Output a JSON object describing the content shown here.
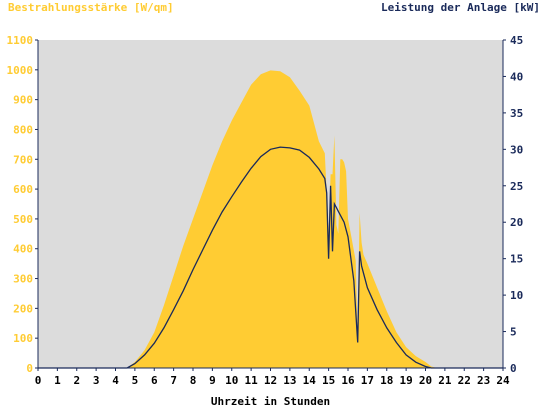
{
  "chart_data": {
    "type": "area",
    "title_left": "Bestrahlungsstärke [W/qm]",
    "title_right": "Leistung der Anlage [kW]",
    "xlabel": "Uhrzeit in Stunden",
    "x_ticks": [
      "0",
      "1",
      "2",
      "3",
      "4",
      "5",
      "6",
      "7",
      "8",
      "9",
      "10",
      "11",
      "12",
      "13",
      "14",
      "15",
      "16",
      "17",
      "18",
      "19",
      "20",
      "21",
      "22",
      "23",
      "24"
    ],
    "y_left_ticks": [
      "0",
      "100",
      "200",
      "300",
      "400",
      "500",
      "600",
      "700",
      "800",
      "900",
      "1000",
      "1100"
    ],
    "y_right_ticks": [
      "0",
      "5",
      "10",
      "15",
      "20",
      "25",
      "30",
      "35",
      "40",
      "45"
    ],
    "xlim": [
      0,
      24
    ],
    "ylim_left": [
      0,
      1100
    ],
    "ylim_right": [
      0,
      45
    ],
    "grid": false,
    "colors": {
      "background": "#dcdcdc",
      "irradiance_fill": "#ffcc33",
      "power_line": "#1a2a5a",
      "left_axis_text": "#ffcc33",
      "right_axis_text": "#1a2a5a",
      "axis_line": "#1a2a5a",
      "x_text": "#000000"
    },
    "series": [
      {
        "axis": "left",
        "style": "area",
        "x": [
          0,
          4.6,
          5.0,
          5.5,
          6.0,
          6.5,
          7.0,
          7.5,
          8.0,
          8.5,
          9.0,
          9.5,
          10.0,
          10.5,
          11.0,
          11.5,
          12.0,
          12.5,
          13.0,
          13.5,
          14.0,
          14.5,
          14.8,
          15.0,
          15.1,
          15.2,
          15.3,
          15.4,
          15.5,
          15.6,
          15.7,
          15.8,
          15.9,
          16.0,
          16.2,
          16.4,
          16.5,
          16.6,
          16.7,
          16.8,
          17.0,
          17.5,
          18.0,
          18.5,
          19.0,
          19.5,
          20.0,
          20.3,
          20.6,
          24
        ],
        "y": [
          0,
          0,
          20,
          60,
          120,
          210,
          310,
          410,
          500,
          590,
          680,
          760,
          830,
          890,
          950,
          985,
          998,
          995,
          975,
          930,
          880,
          760,
          720,
          450,
          650,
          650,
          780,
          480,
          450,
          700,
          700,
          690,
          660,
          500,
          430,
          360,
          100,
          520,
          420,
          380,
          350,
          270,
          190,
          120,
          70,
          40,
          20,
          5,
          0,
          0
        ]
      },
      {
        "axis": "right",
        "style": "line",
        "x": [
          0,
          4.6,
          5.0,
          5.5,
          6.0,
          6.5,
          7.0,
          7.5,
          8.0,
          8.5,
          9.0,
          9.5,
          10.0,
          10.5,
          11.0,
          11.5,
          12.0,
          12.5,
          13.0,
          13.5,
          14.0,
          14.5,
          14.8,
          14.9,
          15.0,
          15.1,
          15.2,
          15.3,
          15.4,
          15.5,
          15.8,
          16.0,
          16.3,
          16.5,
          16.6,
          16.7,
          16.8,
          17.0,
          17.5,
          18.0,
          18.5,
          19.0,
          19.5,
          20.0,
          20.3,
          20.6,
          24
        ],
        "y": [
          0,
          0,
          0.6,
          1.8,
          3.4,
          5.5,
          8,
          10.6,
          13.5,
          16.2,
          18.9,
          21.4,
          23.5,
          25.5,
          27.4,
          29,
          30,
          30.3,
          30.2,
          29.9,
          28.9,
          27.3,
          26,
          24,
          15,
          25,
          16,
          22.5,
          22,
          21.5,
          20,
          18,
          12,
          3.5,
          16,
          14,
          13,
          11,
          8,
          5.5,
          3.5,
          1.8,
          0.8,
          0.2,
          0,
          0,
          0
        ]
      }
    ]
  }
}
